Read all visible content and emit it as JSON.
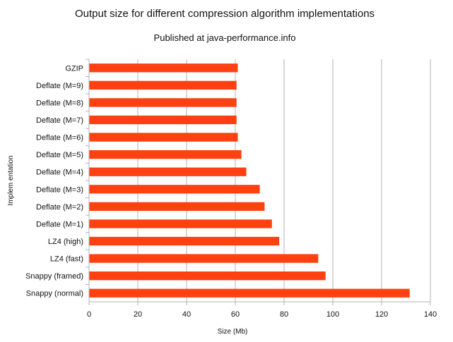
{
  "chart_data": {
    "type": "bar",
    "orientation": "horizontal",
    "title": "Output size for different compression algorithm implementations",
    "subtitle": "Published at java-performance.info",
    "xlabel": "Size (Mb)",
    "ylabel": "Implem entation",
    "xlim": [
      0,
      140
    ],
    "xticks": [
      "0",
      "20",
      "40",
      "60",
      "80",
      "100",
      "120",
      "140"
    ],
    "grid": true,
    "legend": "none",
    "series": [
      {
        "name": "Size (Mb)",
        "color": "#ff4010"
      }
    ],
    "categories": [
      "GZIP",
      "Deflate (M=9)",
      "Deflate (M=8)",
      "Deflate (M=7)",
      "Deflate (M=6)",
      "Deflate (M=5)",
      "Deflate (M=4)",
      "Deflate (M=3)",
      "Deflate (M=2)",
      "Deflate (M=1)",
      "LZ4 (high)",
      "LZ4 (fast)",
      "Snappy (framed)",
      "Snappy (normal)"
    ],
    "values": [
      61,
      60.5,
      60.5,
      60.5,
      61,
      62.5,
      64.5,
      70,
      72,
      75,
      78,
      94,
      97,
      131.5
    ]
  },
  "colors": {
    "bar": "#ff4010",
    "grid": "#b3b3b3",
    "axis": "#b3b3b3",
    "text": "#111111",
    "background": "#ffffff"
  }
}
